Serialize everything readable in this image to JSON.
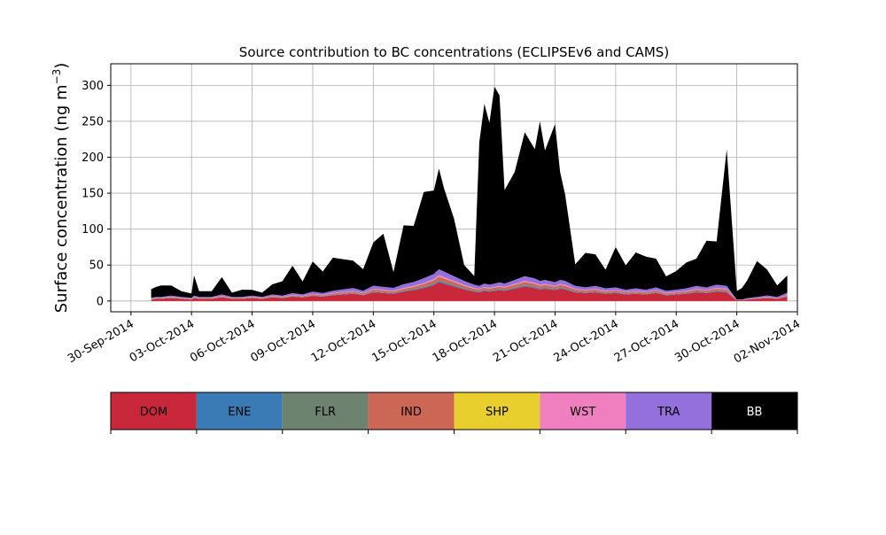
{
  "chart_data": {
    "type": "area",
    "stacked": true,
    "title": "Source contribution to BC concentrations (ECLIPSEv6 and CAMS)",
    "ylabel": "Surface concentration (ng m",
    "ylabel_superscript": "−3",
    "ylabel_suffix": ")",
    "ylim": [
      -15,
      330
    ],
    "xlim": [
      "2014-09-29",
      "2014-11-02"
    ],
    "yticks": [
      0,
      50,
      100,
      150,
      200,
      250,
      300
    ],
    "xticks": [
      "2014-09-30",
      "2014-10-03",
      "2014-10-06",
      "2014-10-09",
      "2014-10-12",
      "2014-10-15",
      "2014-10-18",
      "2014-10-21",
      "2014-10-24",
      "2014-10-27",
      "2014-10-30",
      "2014-11-02"
    ],
    "xtick_labels": [
      "30-Sep-2014",
      "03-Oct-2014",
      "06-Oct-2014",
      "09-Oct-2014",
      "12-Oct-2014",
      "15-Oct-2014",
      "18-Oct-2014",
      "21-Oct-2014",
      "24-Oct-2014",
      "27-Oct-2014",
      "30-Oct-2014",
      "02-Nov-2014"
    ],
    "grid": true,
    "x": [
      "2014-10-01",
      "2014-10-01 06:00",
      "2014-10-01 12:00",
      "2014-10-02",
      "2014-10-02 12:00",
      "2014-10-03",
      "2014-10-03 03:00",
      "2014-10-03 09:00",
      "2014-10-04",
      "2014-10-04 12:00",
      "2014-10-05",
      "2014-10-05 12:00",
      "2014-10-06",
      "2014-10-06 12:00",
      "2014-10-07",
      "2014-10-07 12:00",
      "2014-10-08",
      "2014-10-08 12:00",
      "2014-10-09",
      "2014-10-09 12:00",
      "2014-10-10",
      "2014-10-10 12:00",
      "2014-10-11",
      "2014-10-11 12:00",
      "2014-10-12",
      "2014-10-12 12:00",
      "2014-10-13",
      "2014-10-13 12:00",
      "2014-10-14",
      "2014-10-14 12:00",
      "2014-10-15",
      "2014-10-15 06:00",
      "2014-10-15 12:00",
      "2014-10-16",
      "2014-10-16 12:00",
      "2014-10-17",
      "2014-10-17 06:00",
      "2014-10-17 12:00",
      "2014-10-17 18:00",
      "2014-10-18",
      "2014-10-18 06:00",
      "2014-10-18 12:00",
      "2014-10-19",
      "2014-10-19 12:00",
      "2014-10-20",
      "2014-10-20 06:00",
      "2014-10-20 12:00",
      "2014-10-21",
      "2014-10-21 06:00",
      "2014-10-21 12:00",
      "2014-10-22",
      "2014-10-22 12:00",
      "2014-10-23",
      "2014-10-23 12:00",
      "2014-10-24",
      "2014-10-24 12:00",
      "2014-10-25",
      "2014-10-25 12:00",
      "2014-10-26",
      "2014-10-26 12:00",
      "2014-10-27",
      "2014-10-27 12:00",
      "2014-10-28",
      "2014-10-28 12:00",
      "2014-10-29",
      "2014-10-29 12:00",
      "2014-10-30",
      "2014-10-30 06:00",
      "2014-10-30 12:00",
      "2014-10-31",
      "2014-10-31 12:00",
      "2014-11-01",
      "2014-11-01 12:00"
    ],
    "series": [
      {
        "name": "DOM",
        "color": "#c8283a",
        "values": [
          2,
          3,
          3,
          4,
          3,
          2,
          4,
          3,
          3,
          5,
          3,
          3,
          4,
          3,
          5,
          4,
          6,
          5,
          7,
          6,
          8,
          9,
          10,
          8,
          12,
          11,
          10,
          13,
          15,
          18,
          22,
          26,
          24,
          20,
          16,
          13,
          12,
          14,
          13,
          14,
          15,
          14,
          17,
          20,
          18,
          16,
          17,
          15,
          17,
          16,
          12,
          11,
          12,
          10,
          11,
          9,
          10,
          9,
          11,
          8,
          9,
          10,
          12,
          11,
          13,
          12,
          1,
          1,
          2,
          3,
          4,
          3,
          6
        ]
      },
      {
        "name": "ENE",
        "color": "#3a7bb5",
        "values": [
          0.3,
          0.3,
          0.3,
          0.4,
          0.3,
          0.3,
          0.4,
          0.3,
          0.3,
          0.4,
          0.3,
          0.3,
          0.4,
          0.3,
          0.4,
          0.4,
          0.5,
          0.4,
          0.5,
          0.5,
          0.6,
          0.6,
          0.7,
          0.6,
          0.8,
          0.8,
          0.7,
          0.9,
          1,
          1.2,
          1.4,
          1.6,
          1.5,
          1.3,
          1.1,
          0.9,
          0.9,
          1,
          0.9,
          1,
          1,
          1,
          1.2,
          1.4,
          1.3,
          1.1,
          1.2,
          1.1,
          1.2,
          1.1,
          0.9,
          0.8,
          0.9,
          0.7,
          0.8,
          0.7,
          0.7,
          0.7,
          0.8,
          0.6,
          0.7,
          0.7,
          0.9,
          0.8,
          0.9,
          0.9,
          0.1,
          0.1,
          0.2,
          0.2,
          0.3,
          0.2,
          0.4
        ]
      },
      {
        "name": "FLR",
        "color": "#6e8270",
        "values": [
          0.2,
          0.2,
          0.2,
          0.3,
          0.2,
          0.2,
          0.3,
          0.2,
          0.2,
          0.3,
          0.2,
          0.2,
          0.3,
          0.2,
          0.3,
          0.3,
          0.3,
          0.3,
          0.4,
          0.3,
          0.4,
          0.4,
          0.5,
          0.4,
          0.6,
          0.5,
          0.5,
          0.6,
          0.7,
          0.8,
          1,
          1.2,
          1.1,
          0.9,
          0.8,
          0.6,
          0.6,
          0.7,
          0.6,
          0.7,
          0.7,
          0.7,
          0.8,
          1,
          0.9,
          0.8,
          0.8,
          0.7,
          0.8,
          0.8,
          0.6,
          0.5,
          0.6,
          0.5,
          0.5,
          0.4,
          0.5,
          0.4,
          0.5,
          0.4,
          0.4,
          0.5,
          0.6,
          0.5,
          0.6,
          0.6,
          0.1,
          0.1,
          0.1,
          0.1,
          0.2,
          0.1,
          0.3
        ]
      },
      {
        "name": "IND",
        "color": "#cc6655",
        "values": [
          0.5,
          0.6,
          0.6,
          0.8,
          0.6,
          0.5,
          0.8,
          0.6,
          0.6,
          1,
          0.6,
          0.6,
          0.8,
          0.6,
          1,
          0.8,
          1.2,
          1,
          1.4,
          1.2,
          1.6,
          1.8,
          2,
          1.6,
          2.4,
          2.2,
          2,
          2.6,
          3,
          3.6,
          4.4,
          5.2,
          4.8,
          4,
          3.2,
          2.6,
          2.4,
          2.8,
          2.6,
          2.8,
          3,
          2.8,
          3.4,
          4,
          3.6,
          3.2,
          3.4,
          3,
          3.4,
          3.2,
          2.4,
          2.2,
          2.4,
          2,
          2.2,
          1.8,
          2,
          1.8,
          2.2,
          1.6,
          1.8,
          2,
          2.4,
          2.2,
          2.6,
          2.4,
          0.2,
          0.2,
          0.4,
          0.6,
          0.8,
          0.6,
          1.2
        ]
      },
      {
        "name": "SHP",
        "color": "#e8cf2e",
        "values": [
          0.1,
          0.1,
          0.1,
          0.1,
          0.1,
          0.1,
          0.1,
          0.1,
          0.1,
          0.1,
          0.1,
          0.1,
          0.1,
          0.1,
          0.1,
          0.1,
          0.1,
          0.1,
          0.1,
          0.1,
          0.1,
          0.1,
          0.1,
          0.1,
          0.2,
          0.2,
          0.2,
          0.2,
          0.2,
          0.2,
          0.3,
          0.3,
          0.3,
          0.2,
          0.2,
          0.2,
          0.2,
          0.2,
          0.2,
          0.2,
          0.2,
          0.2,
          0.2,
          0.2,
          0.2,
          0.2,
          0.2,
          0.2,
          0.2,
          0.2,
          0.2,
          0.2,
          0.2,
          0.1,
          0.1,
          0.1,
          0.1,
          0.1,
          0.1,
          0.1,
          0.1,
          0.1,
          0.2,
          0.1,
          0.2,
          0.2,
          0,
          0,
          0,
          0,
          0.1,
          0,
          0.1
        ]
      },
      {
        "name": "WST",
        "color": "#f07fbf",
        "values": [
          0.3,
          0.3,
          0.3,
          0.4,
          0.3,
          0.3,
          0.4,
          0.3,
          0.3,
          0.4,
          0.3,
          0.3,
          0.4,
          0.3,
          0.4,
          0.4,
          0.5,
          0.4,
          0.6,
          0.5,
          0.6,
          0.7,
          0.8,
          0.6,
          0.9,
          0.9,
          0.8,
          1,
          1.1,
          1.3,
          1.6,
          1.9,
          1.8,
          1.5,
          1.2,
          1,
          0.9,
          1,
          1,
          1,
          1.1,
          1,
          1.3,
          1.5,
          1.3,
          1.2,
          1.3,
          1.1,
          1.3,
          1.2,
          0.9,
          0.8,
          0.9,
          0.8,
          0.8,
          0.7,
          0.8,
          0.7,
          0.8,
          0.6,
          0.7,
          0.8,
          0.9,
          0.8,
          1,
          0.9,
          0.1,
          0.1,
          0.2,
          0.2,
          0.3,
          0.2,
          0.5
        ]
      },
      {
        "name": "TRA",
        "color": "#9370db",
        "values": [
          1,
          1.2,
          1.2,
          1.5,
          1.2,
          1,
          1.5,
          1.2,
          1.2,
          2,
          1.2,
          1.2,
          1.5,
          1.2,
          2,
          1.5,
          2.5,
          2,
          3,
          2.5,
          3,
          3.5,
          4,
          3,
          4.5,
          4,
          4,
          5,
          5.5,
          6.5,
          7,
          8,
          7.5,
          6.5,
          5.5,
          4.5,
          4,
          4.5,
          4.5,
          4.5,
          5,
          4.5,
          5.5,
          6.5,
          6,
          5.5,
          5.5,
          5,
          5.5,
          5.5,
          4,
          3.5,
          4,
          3.5,
          3.5,
          3,
          3.5,
          3,
          3.5,
          3,
          3,
          3.5,
          4,
          3.5,
          4.5,
          4,
          0.5,
          0.5,
          1,
          1.5,
          2,
          1.5,
          3
        ]
      },
      {
        "name": "BB",
        "color": "#000000",
        "values": [
          12,
          14,
          16,
          14,
          8,
          6,
          28,
          8,
          8,
          24,
          6,
          10,
          8,
          6,
          14,
          20,
          38,
          18,
          42,
          30,
          46,
          42,
          38,
          30,
          60,
          74,
          22,
          82,
          78,
          120,
          116,
          140,
          116,
          80,
          22,
          12,
          200,
          250,
          225,
          274,
          260,
          130,
          150,
          200,
          180,
          222,
          180,
          220,
          150,
          120,
          30,
          48,
          44,
          26,
          56,
          34,
          50,
          46,
          40,
          20,
          26,
          36,
          38,
          65,
          60,
          190,
          12,
          16,
          24,
          50,
          36,
          16,
          24
        ]
      }
    ]
  },
  "legend": {
    "labels": [
      "DOM",
      "ENE",
      "FLR",
      "IND",
      "SHP",
      "WST",
      "TRA",
      "BB"
    ],
    "colors": [
      "#c8283a",
      "#3a7bb5",
      "#6e8270",
      "#cc6655",
      "#e8cf2e",
      "#f07fbf",
      "#9370db",
      "#000000"
    ],
    "text_colors": [
      "#000000",
      "#000000",
      "#000000",
      "#000000",
      "#000000",
      "#000000",
      "#000000",
      "#ffffff"
    ]
  }
}
